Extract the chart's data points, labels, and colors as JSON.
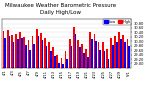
{
  "title": "Milwaukee Weather Barometric Pressure",
  "subtitle": "Daily High/Low",
  "background_color": "#ffffff",
  "high_color": "#ff0000",
  "low_color": "#0000ff",
  "ylim": [
    28.8,
    31.0
  ],
  "ytick_labels": [
    "29.00",
    "29.20",
    "29.40",
    "29.60",
    "29.80",
    "30.00",
    "30.20",
    "30.40",
    "30.60",
    "30.80"
  ],
  "ytick_vals": [
    29.0,
    29.2,
    29.4,
    29.6,
    29.8,
    30.0,
    30.2,
    30.4,
    30.6,
    30.8
  ],
  "highs": [
    30.45,
    30.52,
    30.28,
    30.35,
    30.42,
    30.18,
    30.05,
    30.22,
    30.55,
    30.38,
    30.15,
    29.95,
    29.72,
    29.38,
    29.25,
    29.55,
    30.12,
    30.65,
    30.08,
    29.88,
    29.65,
    30.42,
    30.35,
    29.98,
    29.95,
    29.65,
    30.15,
    30.25,
    30.42,
    30.28,
    30.12
  ],
  "lows": [
    30.15,
    30.22,
    29.98,
    30.12,
    30.15,
    29.82,
    29.62,
    29.88,
    30.22,
    30.08,
    29.78,
    29.55,
    29.32,
    29.02,
    28.98,
    29.18,
    29.78,
    30.35,
    29.72,
    29.48,
    29.28,
    30.12,
    30.02,
    29.62,
    29.55,
    29.22,
    29.82,
    29.95,
    30.12,
    29.95,
    29.78
  ],
  "xtick_labels": [
    "4/1",
    "4/3",
    "4/5",
    "4/7",
    "4/9",
    "4/11",
    "4/13",
    "4/15",
    "4/17",
    "4/19",
    "4/21",
    "4/23",
    "4/25",
    "4/27",
    "4/29",
    "5/1"
  ],
  "xtick_positions": [
    0,
    2,
    4,
    6,
    8,
    10,
    12,
    14,
    16,
    18,
    20,
    22,
    24,
    26,
    28,
    30
  ],
  "title_fontsize": 4.0,
  "tick_fontsize": 2.6,
  "legend_fontsize": 2.5,
  "bar_width": 0.42,
  "legend_labels_blue": "Low",
  "legend_labels_red": "High"
}
